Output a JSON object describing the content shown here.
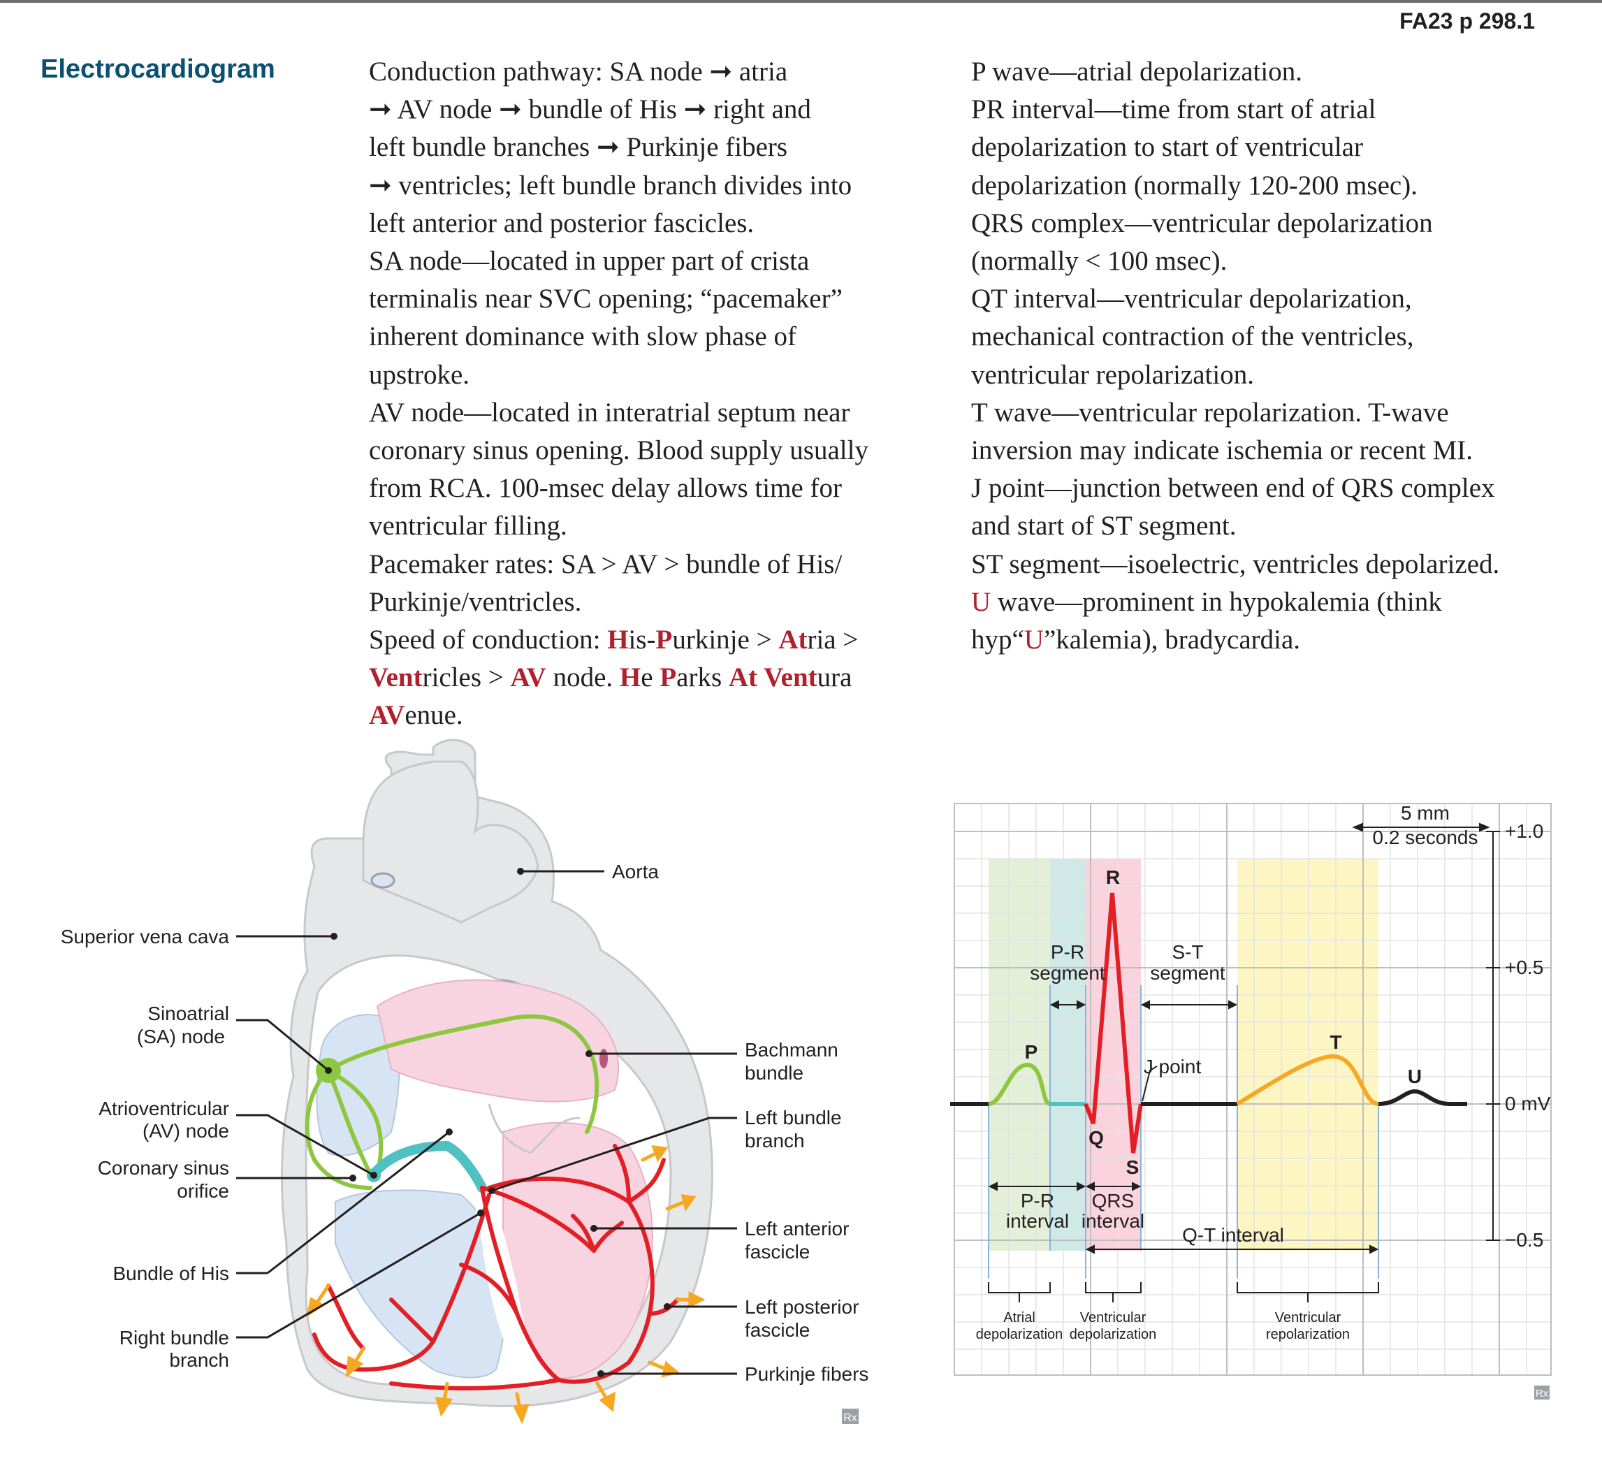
{
  "header": {
    "page_ref": "FA23 p 298.1"
  },
  "section": {
    "title": "Electrocardiogram"
  },
  "left_column": {
    "p1": {
      "a": "Conduction pathway: SA node ➞ atria",
      "b": "➞ AV node ➞ bundle of His ➞ right and",
      "c": "left bundle branches ➞ Purkinje fibers",
      "d": "➞ ventricles; left bundle branch divides into",
      "e": "left anterior and posterior fascicles."
    },
    "p2": {
      "a": "SA node—located in upper part of crista",
      "b": "terminalis near SVC opening; “pacemaker”",
      "c": "inherent dominance with slow phase of",
      "d": "upstroke."
    },
    "p3": {
      "a": "AV node—located in interatrial septum near",
      "b": "coronary sinus opening. Blood supply usually",
      "c": "from RCA. 100-msec delay allows time for",
      "d": "ventricular filling."
    },
    "p4": {
      "a": "Pacemaker rates: SA > AV > bundle of His/",
      "b": "Purkinje/ventricles."
    },
    "p5": {
      "t1": "Speed of conduction: ",
      "h1": "H",
      "t2": "is-",
      "h2": "P",
      "t3": "urkinje > ",
      "h3": "At",
      "t4": "ria >",
      "h4": "Vent",
      "t5": "ricles > ",
      "h5": "AV",
      "t6": " node. ",
      "h6": "H",
      "t7": "e ",
      "h7": "P",
      "t8": "arks ",
      "h8": "At Vent",
      "t9": "ura",
      "h9": "AV",
      "t10": "enue."
    }
  },
  "right_column": {
    "p1": "P wave—atrial depolarization.",
    "p2": {
      "a": "PR interval—time from start of atrial",
      "b": "depolarization to start of ventricular",
      "c": "depolarization (normally 120-200 msec)."
    },
    "p3": {
      "a": "QRS complex—ventricular depolarization",
      "b": "(normally < 100 msec)."
    },
    "p4": {
      "a": "QT interval—ventricular depolarization,",
      "b": "mechanical contraction of the ventricles,",
      "c": "ventricular repolarization."
    },
    "p5": {
      "a": "T wave—ventricular repolarization. T-wave",
      "b": "inversion may indicate ischemia or recent MI."
    },
    "p6": {
      "a": "J point—junction between end of QRS complex",
      "b": "and start of ST segment."
    },
    "p7": "ST segment—isoelectric, ventricles depolarized.",
    "p8": {
      "u": "U",
      "a": " wave—prominent in hypokalemia (think",
      "b1": "hyp“",
      "b2": "U",
      "b3": "”kalemia), bradycardia."
    }
  },
  "heart_diagram": {
    "labels": {
      "aorta": "Aorta",
      "svc": "Superior vena cava",
      "sa1": "Sinoatrial",
      "sa2": "(SA) node",
      "av1": "Atrioventricular",
      "av2": "(AV) node",
      "cs1": "Coronary sinus",
      "cs2": "orifice",
      "his": "Bundle of His",
      "rbb1": "Right bundle",
      "rbb2": "branch",
      "bach1": "Bachmann",
      "bach2": "bundle",
      "lbb1": "Left bundle",
      "lbb2": "branch",
      "laf1": "Left anterior",
      "laf2": "fascicle",
      "lpf1": "Left posterior",
      "lpf2": "fascicle",
      "purk": "Purkinje fibers"
    },
    "colors": {
      "tissue": "#e6e7e8",
      "atria": "#d6e4f4",
      "ventricle_left": "#f7d4df",
      "conduction_green": "#8dc63f",
      "his_teal": "#4fc1c0",
      "purkinje_red": "#e31e24",
      "arrow_orange": "#f7a823"
    }
  },
  "ecg_diagram": {
    "labels": {
      "scale1": "5 mm",
      "scale2": "0.2 seconds",
      "y1": "+1.0",
      "y05": "+0.5",
      "y0": "0  mV",
      "ym05": "−0.5",
      "P": "P",
      "Q": "Q",
      "R": "R",
      "S": "S",
      "T": "T",
      "U": "U",
      "pr_seg1": "P-R",
      "pr_seg2": "segment",
      "st_seg1": "S-T",
      "st_seg2": "segment",
      "jpoint": "J point",
      "pr_int1": "P-R",
      "pr_int2": "interval",
      "qrs_int1": "QRS",
      "qrs_int2": "interval",
      "qt_int": "Q-T interval",
      "atr1": "Atrial",
      "atr2": "depolarization",
      "ven1": "Ventricular",
      "ven2": "depolarization",
      "rep1": "Ventricular",
      "rep2": "repolarization"
    },
    "colors": {
      "p_wave": "#8dc63f",
      "qrs": "#e31e24",
      "t_wave": "#f7a823",
      "pr_band": "#e3efd6",
      "seg_band": "#cfe9e6",
      "qrs_band": "#fbd3de",
      "t_band": "#fdf6c3"
    }
  },
  "watermark": "Rx"
}
